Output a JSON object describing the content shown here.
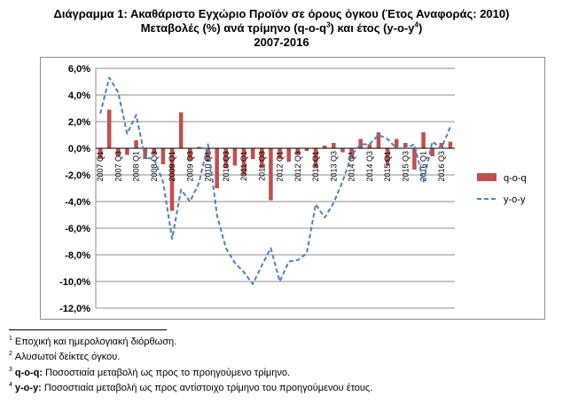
{
  "title": {
    "line1": "Διάγραμμα 1: Ακαθάριστο Εγχώριο Προϊόν σε όρους όγκου (Έτος Αναφοράς: 2010)",
    "line2_pre": "Μεταβολές (%) ανά τρίμηνο (q-o-q",
    "line2_sup1": "3",
    "line2_mid": ") και έτος (y-o-y",
    "line2_sup2": "4",
    "line2_post": ")",
    "line3": "2007-2016"
  },
  "footnotes": [
    {
      "num": "1",
      "term": "",
      "text": "Εποχική και ημερολογιακή διόρθωση."
    },
    {
      "num": "2",
      "term": "",
      "text": "Αλυσωτοί δείκτες όγκου."
    },
    {
      "num": "3",
      "term": "q-o-q:",
      "text": " Ποσοστιαία μεταβολή ως προς το προηγούμενο τρίμηνο."
    },
    {
      "num": "4",
      "term": "y-o-y:",
      "text": " Ποσοστιαία μεταβολή ως προς αντίστοιχο τρίμηνο του προηγούμενου έτους."
    }
  ],
  "chart_data": {
    "type": "bar+line",
    "x": [
      "2007 Q1",
      "2007 Q2",
      "2007 Q3",
      "2007 Q4",
      "2008 Q1",
      "2008 Q2",
      "2008 Q3",
      "2008 Q4",
      "2009 Q1",
      "2009 Q2",
      "2009 Q3",
      "2009 Q4",
      "2010 Q1",
      "2010 Q2",
      "2010 Q3",
      "2010 Q4",
      "2011 Q1",
      "2011 Q2",
      "2011 Q3",
      "2011 Q4",
      "2012 Q1",
      "2012 Q2",
      "2012 Q3",
      "2012 Q4",
      "2013 Q1",
      "2013 Q2",
      "2013 Q3",
      "2013 Q4",
      "2014 Q1",
      "2014 Q2",
      "2014 Q3",
      "2014 Q4",
      "2015 Q1",
      "2015 Q2",
      "2015 Q3",
      "2015 Q4",
      "2016 Q1",
      "2016 Q2",
      "2016 Q3",
      "2016 Q4"
    ],
    "tick_labels": [
      "2007 Q1",
      "2007 Q3",
      "2008 Q1",
      "2008 Q3",
      "2009 Q1",
      "2009 Q3",
      "2010 Q1",
      "2010 Q3",
      "2011 Q1",
      "2011 Q3",
      "2012 Q1",
      "2012 Q3",
      "2013 Q1",
      "2013 Q3",
      "2014 Q1",
      "2014 Q3",
      "2015 Q1",
      "2015 Q3",
      "2016 Q1",
      "2016 Q3"
    ],
    "series": [
      {
        "name": "q-o-q",
        "kind": "bar",
        "color": "#c0504d",
        "values": [
          -0.8,
          2.9,
          -0.6,
          -0.5,
          0.6,
          -0.8,
          -0.5,
          -1.2,
          -4.7,
          2.7,
          -0.9,
          0.1,
          -1.0,
          -3.0,
          -1.5,
          -1.3,
          -2.0,
          -0.8,
          -1.5,
          -3.9,
          -0.8,
          -1.0,
          -0.5,
          -0.2,
          -1.5,
          0.2,
          0.4,
          -0.3,
          -0.8,
          0.7,
          0.3,
          1.2,
          -1.3,
          0.7,
          0.4,
          -1.6,
          1.2,
          -0.6,
          0.4,
          0.5
        ]
      },
      {
        "name": "y-o-y",
        "kind": "line",
        "dash": true,
        "color": "#4f81bd",
        "values": [
          2.6,
          5.3,
          4.2,
          1.1,
          2.5,
          -0.7,
          -0.8,
          -2.5,
          -6.8,
          -3.1,
          -4.0,
          -2.6,
          0.3,
          -5.0,
          -7.5,
          -8.6,
          -9.3,
          -10.2,
          -8.8,
          -7.5,
          -10.0,
          -8.5,
          -8.4,
          -7.9,
          -4.2,
          -5.2,
          -4.1,
          -2.5,
          -0.5,
          0.3,
          0.3,
          1.0,
          0.7,
          0.0,
          0.0,
          0.3,
          -2.5,
          0.5,
          0.0,
          1.6
        ]
      }
    ],
    "ylim": [
      -12,
      6
    ],
    "yticks": [
      6,
      4,
      2,
      0,
      -2,
      -4,
      -6,
      -8,
      -10,
      -12
    ],
    "ytick_labels": [
      "6,0%",
      "4,0%",
      "2,0%",
      "0,0%",
      "-2,0%",
      "-4,0%",
      "-6,0%",
      "-8,0%",
      "-10,0%",
      "-12,0%"
    ],
    "grid": true,
    "legend": "right"
  }
}
